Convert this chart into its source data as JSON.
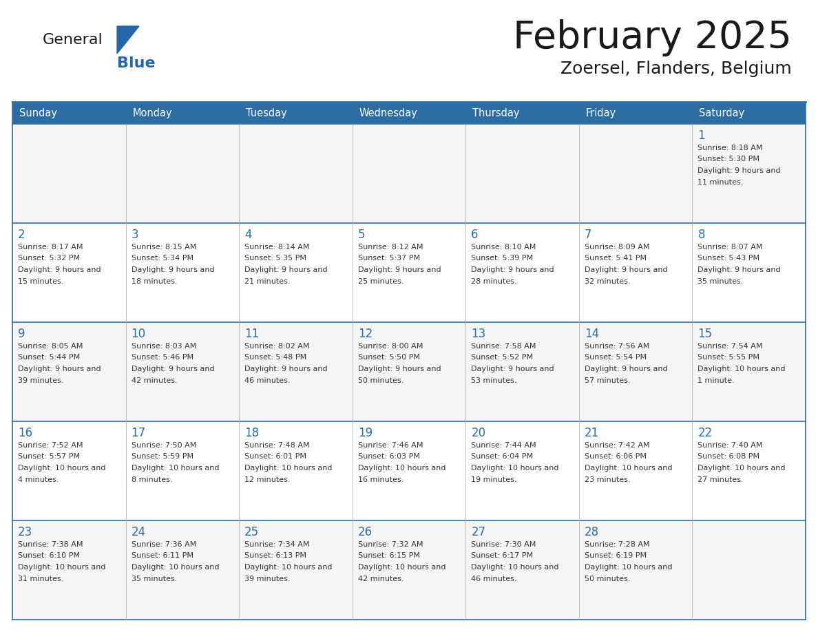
{
  "title": "February 2025",
  "subtitle": "Zoersel, Flanders, Belgium",
  "days_of_week": [
    "Sunday",
    "Monday",
    "Tuesday",
    "Wednesday",
    "Thursday",
    "Friday",
    "Saturday"
  ],
  "header_bg": "#2E6DA4",
  "header_text": "#FFFFFF",
  "cell_bg": "#FFFFFF",
  "cell_bg_alt": "#F2F2F2",
  "border_color": "#2E6DA4",
  "sep_color": "#2E6DA4",
  "day_num_color": "#2E6DA4",
  "text_color": "#333333",
  "title_color": "#1a1a1a",
  "logo_general_color": "#1a1a1a",
  "logo_blue_color": "#2566A8",
  "calendar_data": [
    [
      null,
      null,
      null,
      null,
      null,
      null,
      {
        "day": 1,
        "sunrise": "8:18 AM",
        "sunset": "5:30 PM",
        "daylight": "9 hours and 11 minutes."
      }
    ],
    [
      {
        "day": 2,
        "sunrise": "8:17 AM",
        "sunset": "5:32 PM",
        "daylight": "9 hours and 15 minutes."
      },
      {
        "day": 3,
        "sunrise": "8:15 AM",
        "sunset": "5:34 PM",
        "daylight": "9 hours and 18 minutes."
      },
      {
        "day": 4,
        "sunrise": "8:14 AM",
        "sunset": "5:35 PM",
        "daylight": "9 hours and 21 minutes."
      },
      {
        "day": 5,
        "sunrise": "8:12 AM",
        "sunset": "5:37 PM",
        "daylight": "9 hours and 25 minutes."
      },
      {
        "day": 6,
        "sunrise": "8:10 AM",
        "sunset": "5:39 PM",
        "daylight": "9 hours and 28 minutes."
      },
      {
        "day": 7,
        "sunrise": "8:09 AM",
        "sunset": "5:41 PM",
        "daylight": "9 hours and 32 minutes."
      },
      {
        "day": 8,
        "sunrise": "8:07 AM",
        "sunset": "5:43 PM",
        "daylight": "9 hours and 35 minutes."
      }
    ],
    [
      {
        "day": 9,
        "sunrise": "8:05 AM",
        "sunset": "5:44 PM",
        "daylight": "9 hours and 39 minutes."
      },
      {
        "day": 10,
        "sunrise": "8:03 AM",
        "sunset": "5:46 PM",
        "daylight": "9 hours and 42 minutes."
      },
      {
        "day": 11,
        "sunrise": "8:02 AM",
        "sunset": "5:48 PM",
        "daylight": "9 hours and 46 minutes."
      },
      {
        "day": 12,
        "sunrise": "8:00 AM",
        "sunset": "5:50 PM",
        "daylight": "9 hours and 50 minutes."
      },
      {
        "day": 13,
        "sunrise": "7:58 AM",
        "sunset": "5:52 PM",
        "daylight": "9 hours and 53 minutes."
      },
      {
        "day": 14,
        "sunrise": "7:56 AM",
        "sunset": "5:54 PM",
        "daylight": "9 hours and 57 minutes."
      },
      {
        "day": 15,
        "sunrise": "7:54 AM",
        "sunset": "5:55 PM",
        "daylight": "10 hours and 1 minute."
      }
    ],
    [
      {
        "day": 16,
        "sunrise": "7:52 AM",
        "sunset": "5:57 PM",
        "daylight": "10 hours and 4 minutes."
      },
      {
        "day": 17,
        "sunrise": "7:50 AM",
        "sunset": "5:59 PM",
        "daylight": "10 hours and 8 minutes."
      },
      {
        "day": 18,
        "sunrise": "7:48 AM",
        "sunset": "6:01 PM",
        "daylight": "10 hours and 12 minutes."
      },
      {
        "day": 19,
        "sunrise": "7:46 AM",
        "sunset": "6:03 PM",
        "daylight": "10 hours and 16 minutes."
      },
      {
        "day": 20,
        "sunrise": "7:44 AM",
        "sunset": "6:04 PM",
        "daylight": "10 hours and 19 minutes."
      },
      {
        "day": 21,
        "sunrise": "7:42 AM",
        "sunset": "6:06 PM",
        "daylight": "10 hours and 23 minutes."
      },
      {
        "day": 22,
        "sunrise": "7:40 AM",
        "sunset": "6:08 PM",
        "daylight": "10 hours and 27 minutes."
      }
    ],
    [
      {
        "day": 23,
        "sunrise": "7:38 AM",
        "sunset": "6:10 PM",
        "daylight": "10 hours and 31 minutes."
      },
      {
        "day": 24,
        "sunrise": "7:36 AM",
        "sunset": "6:11 PM",
        "daylight": "10 hours and 35 minutes."
      },
      {
        "day": 25,
        "sunrise": "7:34 AM",
        "sunset": "6:13 PM",
        "daylight": "10 hours and 39 minutes."
      },
      {
        "day": 26,
        "sunrise": "7:32 AM",
        "sunset": "6:15 PM",
        "daylight": "10 hours and 42 minutes."
      },
      {
        "day": 27,
        "sunrise": "7:30 AM",
        "sunset": "6:17 PM",
        "daylight": "10 hours and 46 minutes."
      },
      {
        "day": 28,
        "sunrise": "7:28 AM",
        "sunset": "6:19 PM",
        "daylight": "10 hours and 50 minutes."
      },
      null
    ]
  ]
}
